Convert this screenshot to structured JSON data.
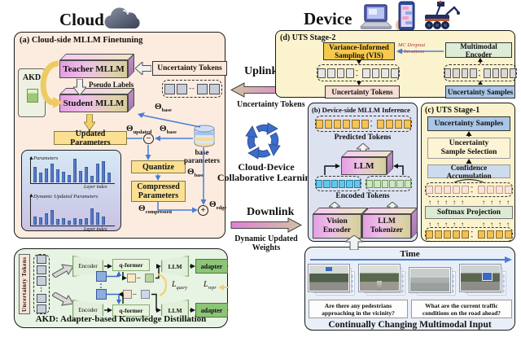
{
  "header": {
    "cloud": "Cloud",
    "device": "Device"
  },
  "panel_a": {
    "label": "(a) Cloud-side MLLM Finetuning",
    "akd_box": "AKD",
    "teacher": "Teacher MLLM",
    "student": "Student MLLM",
    "pseudo_labels": "Pseudo Labels",
    "uncertainty_tokens": "Uncertainty Tokens",
    "updated_parameters": "Updated Parameters",
    "quantize": "Quantize",
    "compressed_1": "Compressed",
    "compressed_2": "Parameters",
    "base_parameters_1": "base",
    "base_parameters_2": "parameters",
    "theta": "Θ",
    "sub_updated": "updated",
    "sub_base": "base",
    "sub_compressed": "compressed",
    "sub_edge": "edge",
    "minus": "−",
    "plus": "+"
  },
  "chart_data": [
    {
      "type": "bar",
      "title": "Parameters",
      "xlabel": "Layer index",
      "ylabel": "",
      "values": [
        62,
        40,
        55,
        78,
        52,
        42,
        30,
        95,
        48,
        62,
        25,
        78,
        88,
        40
      ],
      "ylim": [
        0,
        100
      ],
      "grid": false
    },
    {
      "type": "bar",
      "title": "Dynamic Updated Parameters",
      "xlabel": "Layer index",
      "ylabel": "",
      "values": [
        40,
        34,
        52,
        68,
        26,
        32,
        20,
        32,
        28,
        32,
        78,
        56,
        38
      ],
      "ylim": [
        0,
        100
      ],
      "grid": false
    }
  ],
  "akd": {
    "vertical_label": "Uncertainty Tokens",
    "encoder": "Encoder",
    "qformer": "q-former",
    "llm": "LLM",
    "adapter": "adapter",
    "loss_l": "L",
    "sub_query": "query",
    "sub_repr": "repr",
    "caption": "AKD:  Adapter-based Knowledge Distillation"
  },
  "links": {
    "uplink": "Uplink",
    "uplink_sub": "Uncertainty Tokens",
    "center_1": "Cloud-Device",
    "center_2": "Collaborative Learning",
    "downlink": "Downlink",
    "downlink_sub_1": "Dynamic Updated",
    "downlink_sub_2": "Weights"
  },
  "panel_d": {
    "label": "(d) UTS Stage-2",
    "vis_1": "Variance-Informed",
    "vis_2": "Sampling (VIS)",
    "mc_dropout": "MC Dropout",
    "m_iterations": "M Iterations",
    "multimodal_encoder": "Multimodal Encoder",
    "uncertainty_tokens": "Uncertainty Tokens",
    "uncertainty_samples": "Uncertainty Samples"
  },
  "panel_b": {
    "label": "(b) Device-side MLLM Inference",
    "predicted_tokens": "Predicted Tokens",
    "llm": "LLM",
    "encoded_tokens": "Encoded Tokens",
    "vision_encoder_1": "Vision",
    "vision_encoder_2": "Encoder",
    "llm_tokenizer_1": "LLM",
    "llm_tokenizer_2": "Tokenizer"
  },
  "panel_c": {
    "label": "(c) UTS Stage-1",
    "uncertainty_samples": "Uncertainty Samples",
    "selection_1": "Uncertainty",
    "selection_2": "Sample Selection",
    "confidence": "Confidence Accumulation",
    "softmax": "Softmax Projection"
  },
  "bottom": {
    "time": "Time",
    "q1_1": "Are there any pedestrians",
    "q1_2": "approaching in the vicinity?",
    "q2_1": "What are the current traffic",
    "q2_2": "conditions on the road ahead?",
    "caption": "Continually Changing Multimodal Input"
  },
  "token_rows": {
    "a": {
      "groups": [
        2,
        2
      ],
      "size": 13,
      "fill": "#c9cfda",
      "border": "#4a4f5a"
    },
    "d_left": {
      "groups": [
        4,
        4
      ],
      "size": 12,
      "fill": "#e6e6e6",
      "border": "#555",
      "hatch": [
        0,
        2,
        4,
        7
      ]
    },
    "d_right": {
      "groups": [
        4,
        4
      ],
      "size": 12,
      "fill": "#d9d9d9",
      "border": "#555"
    },
    "b_pred": {
      "groups": [
        6,
        4
      ],
      "size": 11,
      "fill": "#f6c455",
      "border": "#8a6a22"
    },
    "b_enc_l": {
      "groups": [
        6
      ],
      "size": 10,
      "fill": "#63c7eb",
      "border": "#2a7a9a"
    },
    "b_enc_r": {
      "groups": [
        6
      ],
      "size": 10,
      "fill": "#cfe6c2",
      "border": "#6f9a5f"
    },
    "c_pink": {
      "groups": [
        5,
        4
      ],
      "size": 10,
      "fill": "#f9e3da",
      "border": "#bf9a8d"
    },
    "c_gold": {
      "groups": [
        5,
        4
      ],
      "size": 10,
      "fill": "#f4c050",
      "border": "#8a6a22"
    },
    "akd_col": {
      "groups": [
        3,
        2
      ],
      "size": 12,
      "fill": "#c9cfda",
      "border": "#4a4f5a",
      "vertical": true
    }
  },
  "colors": {
    "panel_a_bg": "#fcecdf",
    "panel_akd_bg": "#e7f3e3",
    "panel_d_bg": "#fbf3cd",
    "panel_b_bg": "#dde2f1",
    "panel_c_bg": "#fbf3cd",
    "panel_bottom_bg": "#e9eff8",
    "gold_box": "#fbe094",
    "vis_gold": "#f6c94e",
    "blue_sample": "#a9c6e8",
    "pink_tokens": "#f8ddd3",
    "bar_blue": "#4a72c4",
    "arrow_blue": "#4a7cd8",
    "loop_yellow": "#eecb62",
    "magenta_link": "#df7fd8",
    "tan_link": "#cdc0a0"
  }
}
